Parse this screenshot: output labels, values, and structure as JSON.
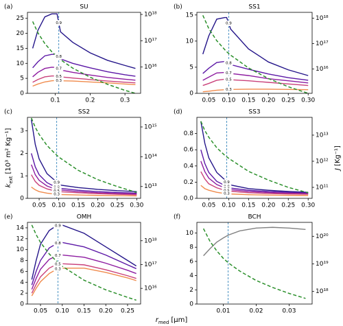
{
  "axis_labels": {
    "y": {
      "symbol": "k",
      "subscript": "ext",
      "unit": "[10³ m² Kg⁻¹]"
    },
    "y2": {
      "symbol": "J",
      "unit": "[Kg⁻¹]"
    },
    "x": {
      "symbol": "r",
      "subscript": "med",
      "unit": "[μm]"
    }
  },
  "chart_data": [
    {
      "type": "line",
      "panel": "(a)",
      "title": "SU",
      "vline": 0.11,
      "x": [
        0.035,
        0.05,
        0.07,
        0.09,
        0.105,
        0.115,
        0.15,
        0.2,
        0.25,
        0.3,
        0.33
      ],
      "xlim": [
        0.02,
        0.345
      ],
      "xticks": [
        0.1,
        0.2,
        0.3
      ],
      "ylim": [
        0,
        27
      ],
      "yticks": [
        0,
        5,
        10,
        15,
        20,
        25
      ],
      "y2log": true,
      "y2lim": [
        1000000000000000.0,
        1.2e+18
      ],
      "y2ticks": [
        {
          "value": 1e+16,
          "label": "10¹⁶"
        },
        {
          "value": 1e+17,
          "label": "10¹⁷"
        },
        {
          "value": 1e+18,
          "label": "10¹⁸"
        }
      ],
      "series": [
        {
          "name": "0.9",
          "color": "#231489",
          "values": [
            15,
            21,
            25.5,
            26.5,
            26.5,
            20.5,
            17,
            13.5,
            11,
            9.3,
            8.3
          ]
        },
        {
          "name": "0.8",
          "color": "#5b17a6",
          "values": [
            8.5,
            10.5,
            12.5,
            13,
            13,
            11.5,
            10,
            8.5,
            7.2,
            6.2,
            5.7
          ]
        },
        {
          "name": "0.7",
          "color": "#8d1ba0",
          "values": [
            5.5,
            7,
            8.3,
            8.7,
            8.6,
            7.8,
            7,
            6.1,
            5.3,
            4.7,
            4.4
          ]
        },
        {
          "name": "0.5",
          "color": "#c9407a",
          "values": [
            3.7,
            4.6,
            5.5,
            5.8,
            5.8,
            5.5,
            5.1,
            4.6,
            4.1,
            3.7,
            3.5
          ]
        },
        {
          "name": "0.3",
          "color": "#f08a4b",
          "values": [
            2.4,
            3.1,
            3.8,
            4.2,
            4.3,
            4.2,
            4.1,
            3.8,
            3.5,
            3.1,
            2.9
          ]
        },
        {
          "color": "#2a8f2a",
          "dash": true,
          "axis": "y2",
          "values": [
            5.4e+17,
            2e+17,
            7.8e+16,
            3.8e+16,
            2.5e+16,
            1.9e+16,
            9100000000000000.0,
            4100000000000000.0,
            2200000000000000.0,
            1300000000000000.0,
            1000000000000000.0
          ]
        }
      ]
    },
    {
      "type": "line",
      "panel": "(b)",
      "title": "SS1",
      "vline": 0.1,
      "x": [
        0.035,
        0.05,
        0.07,
        0.09,
        0.095,
        0.105,
        0.15,
        0.2,
        0.25,
        0.3
      ],
      "xlim": [
        0.02,
        0.31
      ],
      "xticks": [
        0.05,
        {
          "value": 0.1,
          "label": "0.10"
        },
        0.15,
        {
          "value": 0.2,
          "label": "0.20"
        },
        0.25,
        {
          "value": 0.3,
          "label": "0.30"
        }
      ],
      "ylim": [
        0,
        15.5
      ],
      "yticks": [
        0,
        5,
        10,
        15
      ],
      "y2log": true,
      "y2lim": [
        1100000000000000.0,
        1.7e+18
      ],
      "y2ticks": [
        {
          "value": 1e+16,
          "label": "10¹⁶"
        },
        {
          "value": 1e+17,
          "label": "10¹⁷"
        },
        {
          "value": 1e+18,
          "label": "10¹⁸"
        }
      ],
      "series": [
        {
          "name": "0.9",
          "color": "#231489",
          "values": [
            7.5,
            11,
            14.2,
            14.5,
            14.5,
            12.3,
            8.5,
            6,
            4.5,
            3.4
          ]
        },
        {
          "name": "0.8",
          "color": "#5b17a6",
          "values": [
            3.8,
            4.8,
            5.9,
            6.1,
            6.1,
            5.5,
            4.6,
            3.7,
            3,
            2.5
          ]
        },
        {
          "name": "0.7",
          "color": "#8d1ba0",
          "values": [
            2.5,
            3.1,
            3.9,
            4,
            4,
            3.8,
            3.4,
            2.8,
            2.4,
            2
          ]
        },
        {
          "name": "0.5",
          "color": "#c9407a",
          "values": [
            1.5,
            1.9,
            2.5,
            2.7,
            2.7,
            2.6,
            2.4,
            2.1,
            1.8,
            1.5
          ]
        },
        {
          "name": "0.3",
          "color": "#f08a4b",
          "values": [
            0.3,
            0.4,
            0.6,
            0.7,
            0.7,
            0.75,
            0.8,
            0.8,
            0.75,
            0.7
          ]
        },
        {
          "color": "#2a8f2a",
          "dash": true,
          "axis": "y2",
          "values": [
            1.3e+18,
            3.9e+17,
            1.3e+17,
            5.8e+16,
            4.8e+16,
            3.5e+16,
            1.1e+16,
            4200000000000000.0,
            2000000000000000.0,
            1100000000000000.0
          ]
        }
      ]
    },
    {
      "type": "line",
      "panel": "(c)",
      "title": "SS2",
      "vline": 0.095,
      "x": [
        0.03,
        0.04,
        0.05,
        0.07,
        0.09,
        0.1,
        0.15,
        0.2,
        0.25,
        0.3
      ],
      "xlim": [
        0.02,
        0.31
      ],
      "xticks": [
        0.05,
        {
          "value": 0.1,
          "label": "0.10"
        },
        0.15,
        {
          "value": 0.2,
          "label": "0.20"
        },
        0.25,
        {
          "value": 0.3,
          "label": "0.30"
        }
      ],
      "ylim": [
        0,
        3.6
      ],
      "yticks": [
        0,
        1,
        2,
        3
      ],
      "y2log": true,
      "y2lim": [
        4000000000000.0,
        2100000000000000.0
      ],
      "y2ticks": [
        {
          "value": 10000000000000.0,
          "label": "10¹³"
        },
        {
          "value": 100000000000000.0,
          "label": "10¹⁴"
        },
        {
          "value": 1000000000000000.0,
          "label": "10¹⁵"
        }
      ],
      "series": [
        {
          "name": "0.9",
          "color": "#231489",
          "values": [
            3.5,
            2.4,
            1.75,
            1.1,
            0.8,
            0.6,
            0.48,
            0.4,
            0.34,
            0.3
          ]
        },
        {
          "name": "0.8",
          "color": "#5b17a6",
          "values": [
            2,
            1.4,
            1.05,
            0.7,
            0.52,
            0.45,
            0.36,
            0.3,
            0.26,
            0.23
          ]
        },
        {
          "name": "0.7",
          "color": "#8d1ba0",
          "values": [
            1.5,
            1.05,
            0.8,
            0.55,
            0.42,
            0.38,
            0.3,
            0.25,
            0.22,
            0.2
          ]
        },
        {
          "name": "0.5",
          "color": "#c9407a",
          "values": [
            1.05,
            0.75,
            0.58,
            0.42,
            0.33,
            0.3,
            0.25,
            0.21,
            0.18,
            0.16
          ]
        },
        {
          "name": "0.3",
          "color": "#f08a4b",
          "values": [
            0.5,
            0.38,
            0.3,
            0.23,
            0.19,
            0.17,
            0.15,
            0.13,
            0.12,
            0.11
          ]
        },
        {
          "color": "#2a8f2a",
          "dash": true,
          "axis": "y2",
          "values": [
            2000000000000000.0,
            980000000000000.0,
            560000000000000.0,
            240000000000000.0,
            130000000000000.0,
            98000000000000.0,
            35000000000000.0,
            17000000000000.0,
            10000000000000.0,
            6300000000000.0
          ]
        }
      ]
    },
    {
      "type": "line",
      "panel": "(d)",
      "title": "SS3",
      "vline": 0.095,
      "x": [
        0.03,
        0.04,
        0.05,
        0.07,
        0.09,
        0.1,
        0.15,
        0.2,
        0.25,
        0.3
      ],
      "xlim": [
        0.02,
        0.31
      ],
      "xticks": [
        0.05,
        {
          "value": 0.1,
          "label": "0.10"
        },
        0.15,
        {
          "value": 0.2,
          "label": "0.20"
        },
        0.25,
        {
          "value": 0.3,
          "label": "0.30"
        }
      ],
      "ylim": [
        0,
        1.0
      ],
      "yticks": [
        {
          "value": 0,
          "label": "0.0"
        },
        0.2,
        0.4,
        0.6,
        0.8
      ],
      "y2log": true,
      "y2lim": [
        38000000000.0,
        48000000000000.0
      ],
      "y2ticks": [
        {
          "value": 100000000000.0,
          "label": "10¹¹"
        },
        {
          "value": 1000000000000.0,
          "label": "10¹²"
        },
        {
          "value": 10000000000000.0,
          "label": "10¹³"
        }
      ],
      "series": [
        {
          "name": "0.9",
          "color": "#231489",
          "values": [
            0.95,
            0.68,
            0.5,
            0.32,
            0.23,
            0.17,
            0.12,
            0.1,
            0.085,
            0.075
          ]
        },
        {
          "name": "0.8",
          "color": "#5b17a6",
          "values": [
            0.6,
            0.43,
            0.32,
            0.21,
            0.16,
            0.13,
            0.1,
            0.085,
            0.075,
            0.065
          ]
        },
        {
          "name": "0.7",
          "color": "#8d1ba0",
          "values": [
            0.46,
            0.33,
            0.25,
            0.17,
            0.13,
            0.11,
            0.085,
            0.072,
            0.064,
            0.058
          ]
        },
        {
          "name": "0.5",
          "color": "#c9407a",
          "values": [
            0.33,
            0.24,
            0.18,
            0.13,
            0.1,
            0.09,
            0.07,
            0.06,
            0.054,
            0.05
          ]
        },
        {
          "name": "0.3",
          "color": "#f08a4b",
          "values": [
            0.16,
            0.12,
            0.1,
            0.075,
            0.06,
            0.055,
            0.045,
            0.04,
            0.037,
            0.035
          ]
        },
        {
          "color": "#2a8f2a",
          "dash": true,
          "axis": "y2",
          "values": [
            34000000000000.0,
            15000000000000.0,
            8300000000000.0,
            3300000000000.0,
            1700000000000.0,
            1300000000000.0,
            410000000000.0,
            190000000000.0,
            100000000000.0,
            62000000000.0
          ]
        }
      ]
    },
    {
      "type": "line",
      "panel": "(e)",
      "title": "OMH",
      "vline": 0.09,
      "x": [
        0.03,
        0.04,
        0.05,
        0.07,
        0.085,
        0.095,
        0.1,
        0.15,
        0.2,
        0.25,
        0.27
      ],
      "xlim": [
        0.02,
        0.28
      ],
      "xticks": [
        0.05,
        {
          "value": 0.1,
          "label": "0.10"
        },
        0.15,
        {
          "value": 0.2,
          "label": "0.20"
        },
        0.25
      ],
      "ylim": [
        0,
        15
      ],
      "yticks": [
        0,
        2,
        4,
        6,
        8,
        10,
        12,
        14
      ],
      "y2log": true,
      "y2lim": [
        2200000000000000.0,
        5.9e+18
      ],
      "y2ticks": [
        {
          "value": 1e+16,
          "label": "10¹⁶"
        },
        {
          "value": 1e+17,
          "label": "10¹⁷"
        },
        {
          "value": 1e+18,
          "label": "10¹⁸"
        }
      ],
      "series": [
        {
          "name": "0.9",
          "color": "#231489",
          "values": [
            4.5,
            8,
            11,
            13.5,
            14.3,
            14.5,
            14.5,
            13,
            10.5,
            8,
            7
          ]
        },
        {
          "name": "0.8",
          "color": "#5b17a6",
          "values": [
            3.5,
            6,
            8,
            10.3,
            11,
            11.3,
            11.3,
            10.5,
            9,
            7.2,
            6.5
          ]
        },
        {
          "name": "0.7",
          "color": "#8d1ba0",
          "values": [
            2.7,
            4.7,
            6.4,
            8.2,
            8.8,
            9,
            9,
            8.6,
            7.5,
            6.2,
            5.6
          ]
        },
        {
          "name": "0.5",
          "color": "#c9407a",
          "values": [
            2,
            3.6,
            5,
            6.6,
            7.2,
            7.4,
            7.4,
            7.2,
            6.3,
            5.2,
            4.7
          ]
        },
        {
          "name": "0.3",
          "color": "#f08a4b",
          "values": [
            1.5,
            2.9,
            4.1,
            5.6,
            6.3,
            6.6,
            6.6,
            6.6,
            5.8,
            4.8,
            4.3
          ]
        },
        {
          "color": "#2a8f2a",
          "dash": true,
          "axis": "y2",
          "values": [
            4.6e+18,
            1.8e+18,
            8.5e+17,
            2.8e+17,
            1.5e+17,
            1e+17,
            8.5e+16,
            2.2e+16,
            8700000000000000.0,
            4200000000000000.0,
            3200000000000000.0
          ]
        }
      ]
    },
    {
      "type": "line",
      "panel": "(f)",
      "title": "BCH",
      "vline": 0.0115,
      "x": [
        0.004,
        0.006,
        0.008,
        0.01,
        0.0115,
        0.015,
        0.02,
        0.025,
        0.03,
        0.035
      ],
      "xlim": [
        0.002,
        0.037
      ],
      "xticks": [
        0.01,
        0.02,
        0.03
      ],
      "ylim": [
        0,
        11.5
      ],
      "yticks": [
        0,
        2,
        4,
        6,
        8,
        10
      ],
      "y2log": true,
      "y2lim": [
        3.5e+17,
        3.2e+20
      ],
      "y2ticks": [
        {
          "value": 1e+18,
          "label": "10¹⁸"
        },
        {
          "value": 1e+19,
          "label": "10¹⁹"
        },
        {
          "value": 1e+20,
          "label": "10²⁰"
        }
      ],
      "series": [
        {
          "color": "#808080",
          "values": [
            6.8,
            7.8,
            8.7,
            9.3,
            9.7,
            10.3,
            10.7,
            10.8,
            10.7,
            10.5
          ]
        },
        {
          "color": "#2a8f2a",
          "dash": true,
          "axis": "y2",
          "values": [
            1.9e+20,
            6.5e+19,
            3e+19,
            1.6e+19,
            1.1e+19,
            5.5e+18,
            2.5e+18,
            1.4e+18,
            8.5e+17,
            5.6e+17
          ]
        }
      ]
    }
  ]
}
